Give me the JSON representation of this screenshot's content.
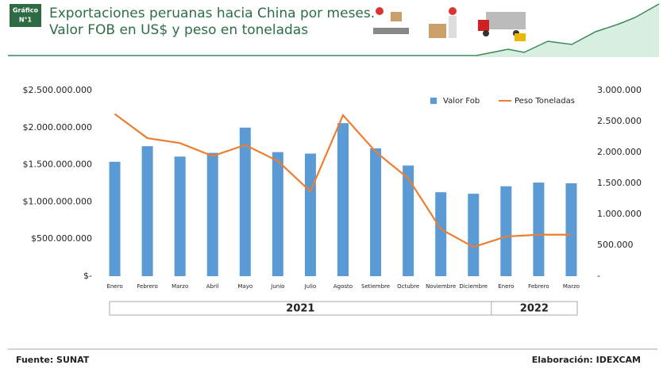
{
  "header": {
    "badge": [
      "Gráfico",
      "N°1"
    ],
    "title": [
      "Exportaciones peruanas hacia China por meses.",
      "Valor FOB en US$ y peso en toneladas"
    ]
  },
  "chart_data": {
    "type": "bar-line",
    "categories": [
      "Enero",
      "Febrero",
      "Marzo",
      "Abril",
      "Mayo",
      "Junio",
      "Julio",
      "Agosto",
      "Setiembre",
      "Octubre",
      "Noviembre",
      "Diciembre",
      "Enero",
      "Febrero",
      "Marzo"
    ],
    "x_groups": [
      {
        "label": "2021",
        "span": 12
      },
      {
        "label": "2022",
        "span": 3
      }
    ],
    "series": [
      {
        "name": "Valor Fob",
        "type": "bar",
        "color": "#5b9bd5",
        "values": [
          1540000000,
          1750000000,
          1610000000,
          1660000000,
          2000000000,
          1670000000,
          1650000000,
          2060000000,
          1720000000,
          1490000000,
          1130000000,
          1110000000,
          1210000000,
          1260000000,
          1250000000
        ]
      },
      {
        "name": "Peso Toneladas",
        "type": "line",
        "axis": "y2",
        "color": "#ed7d31",
        "values": [
          2620000,
          2230000,
          2150000,
          1940000,
          2120000,
          1860000,
          1370000,
          2600000,
          2010000,
          1580000,
          760000,
          470000,
          640000,
          670000,
          670000
        ]
      }
    ],
    "ylim": [
      0,
      2500000000
    ],
    "yticks": [
      {
        "value": 0,
        "label": "$-"
      },
      {
        "value": 500000000,
        "label": "$500.000.000"
      },
      {
        "value": 1000000000,
        "label": "$1.000.000.000"
      },
      {
        "value": 1500000000,
        "label": "$1.500.000.000"
      },
      {
        "value": 2000000000,
        "label": "$2.000.000.000"
      },
      {
        "value": 2500000000,
        "label": "$2.500.000.000"
      }
    ],
    "y2lim": [
      0,
      3000000
    ],
    "y2ticks": [
      {
        "value": 0,
        "label": "-"
      },
      {
        "value": 500000,
        "label": "500.000"
      },
      {
        "value": 1000000,
        "label": "1.000.000"
      },
      {
        "value": 1500000,
        "label": "1.500.000"
      },
      {
        "value": 2000000,
        "label": "2.000.000"
      },
      {
        "value": 2500000,
        "label": "2.500.000"
      },
      {
        "value": 3000000,
        "label": "3.000.000"
      }
    ],
    "legend": "top-right"
  },
  "footer": {
    "source": "Fuente: SUNAT",
    "credit": "Elaboración: IDEXCAM"
  }
}
